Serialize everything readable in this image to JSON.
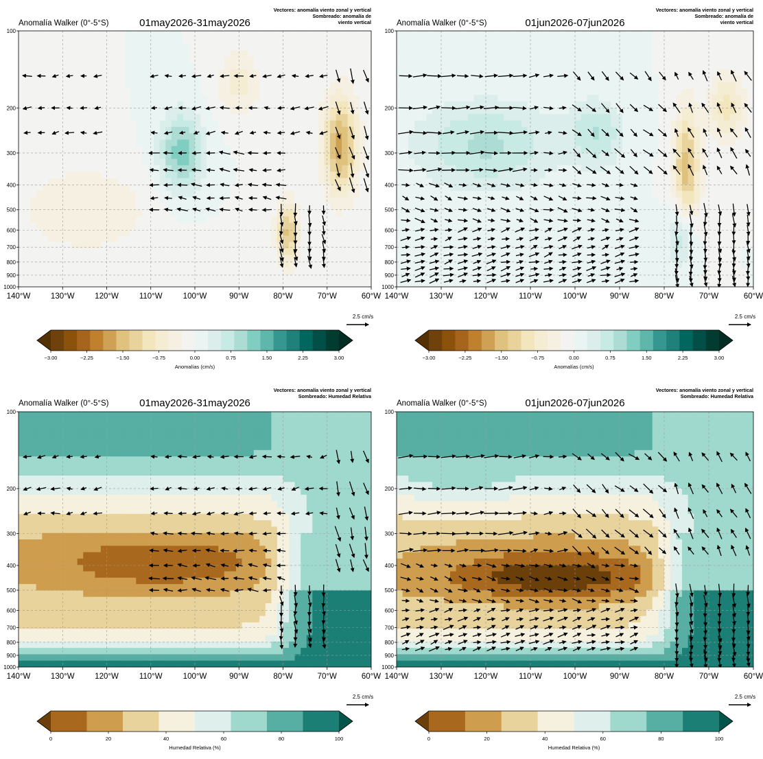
{
  "chart_data": [
    {
      "type": "heatmap",
      "panel": "top-left",
      "left_title": "Anomalía Walker (0°-5°S)",
      "center_title": "01may2026-31may2026",
      "right_title": [
        "Vectores: anomalía viento zonal y vertical",
        "Sombreado: anomalía de",
        "viento vertical"
      ],
      "x_ticks": [
        "140°W",
        "130°W",
        "120°W",
        "110°W",
        "100°W",
        "90°W",
        "80°W",
        "70°W",
        "60°W"
      ],
      "x_values": [
        -140,
        -130,
        -120,
        -110,
        -100,
        -90,
        -80,
        -70,
        -60
      ],
      "y_ticks": [
        "100",
        "200",
        "300",
        "400",
        "500",
        "600",
        "700",
        "800",
        "900",
        "1000"
      ],
      "y_values": [
        100,
        200,
        300,
        400,
        500,
        600,
        700,
        800,
        900,
        1000
      ],
      "xlim": [
        -140,
        -60
      ],
      "ylim": [
        1000,
        100
      ],
      "y_scale": "log (pressure, inverted)",
      "grid": true,
      "reference_vector_label": "2.5 cm/s",
      "colorbar": {
        "label": "Anomalías (cm/s)",
        "tick_labels": [
          "-3.00",
          "-2.25",
          "-1.50",
          "-0.75",
          "0.00",
          "0.75",
          "1.50",
          "2.25",
          "3.00"
        ],
        "range": [
          -3,
          3
        ],
        "n_levels": 24,
        "extend": "both"
      },
      "shading": "weak anomalies (-0.75 to 0.75) over most of the section; positive ~1 near 105-100°W at 200-400 hPa; negative ~-1.5 near 65-68°W at 200-400 hPa and near 79°W at 500-800 hPa"
    },
    {
      "type": "heatmap",
      "panel": "top-right",
      "left_title": "Anomalía Walker (0°-5°S)",
      "center_title": "01jun2026-07jun2026",
      "right_title": [
        "Vectores: anomalía viento zonal y vertical",
        "Sombreado: anomalía de",
        "viento vertical"
      ],
      "x_ticks": [
        "140°W",
        "130°W",
        "120°W",
        "110°W",
        "100°W",
        "90°W",
        "80°W",
        "70°W",
        "60°W"
      ],
      "x_values": [
        -140,
        -130,
        -120,
        -110,
        -100,
        -90,
        -80,
        -70,
        -60
      ],
      "y_ticks": [
        "100",
        "200",
        "300",
        "400",
        "500",
        "600",
        "700",
        "800",
        "900",
        "1000"
      ],
      "y_values": [
        100,
        200,
        300,
        400,
        500,
        600,
        700,
        800,
        900,
        1000
      ],
      "xlim": [
        -140,
        -60
      ],
      "ylim": [
        1000,
        100
      ],
      "y_scale": "log (pressure, inverted)",
      "grid": true,
      "reference_vector_label": "2.5 cm/s",
      "colorbar": {
        "label": "Anomalías (cm/s)",
        "tick_labels": [
          "-3.00",
          "-2.25",
          "-1.50",
          "-0.75",
          "0.00",
          "0.75",
          "1.50",
          "2.25",
          "3.00"
        ],
        "range": [
          -3,
          3
        ],
        "n_levels": 24,
        "extend": "both"
      },
      "shading": "weak positive anomalies (~0.5-1) over 140-110°W at 200-400 hPa; negative ~-1 near 75°W at 200-600 hPa; weak mixed elsewhere"
    },
    {
      "type": "heatmap",
      "panel": "bottom-left",
      "left_title": "Anomalía Walker (0°-5°S)",
      "center_title": "01may2026-31may2026",
      "right_title": [
        "Vectores: anomalía viento zonal y vertical",
        "Sombreado: Humedad Relativa"
      ],
      "x_ticks": [
        "140°W",
        "130°W",
        "120°W",
        "110°W",
        "100°W",
        "90°W",
        "80°W",
        "70°W",
        "60°W"
      ],
      "x_values": [
        -140,
        -130,
        -120,
        -110,
        -100,
        -90,
        -80,
        -70,
        -60
      ],
      "y_ticks": [
        "100",
        "200",
        "300",
        "400",
        "500",
        "600",
        "700",
        "800",
        "900",
        "1000"
      ],
      "y_values": [
        100,
        200,
        300,
        400,
        500,
        600,
        700,
        800,
        900,
        1000
      ],
      "xlim": [
        -140,
        -60
      ],
      "ylim": [
        1000,
        100
      ],
      "y_scale": "log (pressure, inverted)",
      "grid": true,
      "reference_vector_label": "2.5 cm/s",
      "colorbar": {
        "label": "Humedad Relativa (%)",
        "tick_labels": [
          "0",
          "20",
          "40",
          "60",
          "80",
          "100"
        ],
        "range": [
          0,
          100
        ],
        "n_levels": 10,
        "extend": "both"
      },
      "shading": "~70-80% near 100 hPa; 40-60% at 150-200 hPa; dry core 10-20% at 300-450 hPa between 135°W and 85°W; 30-40% at 500-700 hPa; 70-90% below 800 hPa and east of 80°W"
    },
    {
      "type": "heatmap",
      "panel": "bottom-right",
      "left_title": "Anomalía Walker (0°-5°S)",
      "center_title": "01jun2026-07jun2026",
      "right_title": [
        "Vectores: anomalía viento zonal y vertical",
        "Sombreado: Humedad Relativa"
      ],
      "x_ticks": [
        "140°W",
        "130°W",
        "120°W",
        "110°W",
        "100°W",
        "90°W",
        "80°W",
        "70°W",
        "60°W"
      ],
      "x_values": [
        -140,
        -130,
        -120,
        -110,
        -100,
        -90,
        -80,
        -70,
        -60
      ],
      "y_ticks": [
        "100",
        "200",
        "300",
        "400",
        "500",
        "600",
        "700",
        "800",
        "900",
        "1000"
      ],
      "y_values": [
        100,
        200,
        300,
        400,
        500,
        600,
        700,
        800,
        900,
        1000
      ],
      "xlim": [
        -140,
        -60
      ],
      "ylim": [
        1000,
        100
      ],
      "y_scale": "log (pressure, inverted)",
      "grid": true,
      "reference_vector_label": "2.5 cm/s",
      "colorbar": {
        "label": "Humedad Relativa (%)",
        "tick_labels": [
          "0",
          "20",
          "40",
          "60",
          "80",
          "100"
        ],
        "range": [
          0,
          100
        ],
        "n_levels": 10,
        "extend": "both"
      },
      "shading": "~70-80% at 100-150 hPa; 50-70% at 200-250 hPa; very dry core 0-20% at 350-500 hPa between 125°W and 90°W; 20-40% at 600-800 hPa west of 85°W; 70-90% east of 75°W and near surface"
    }
  ]
}
